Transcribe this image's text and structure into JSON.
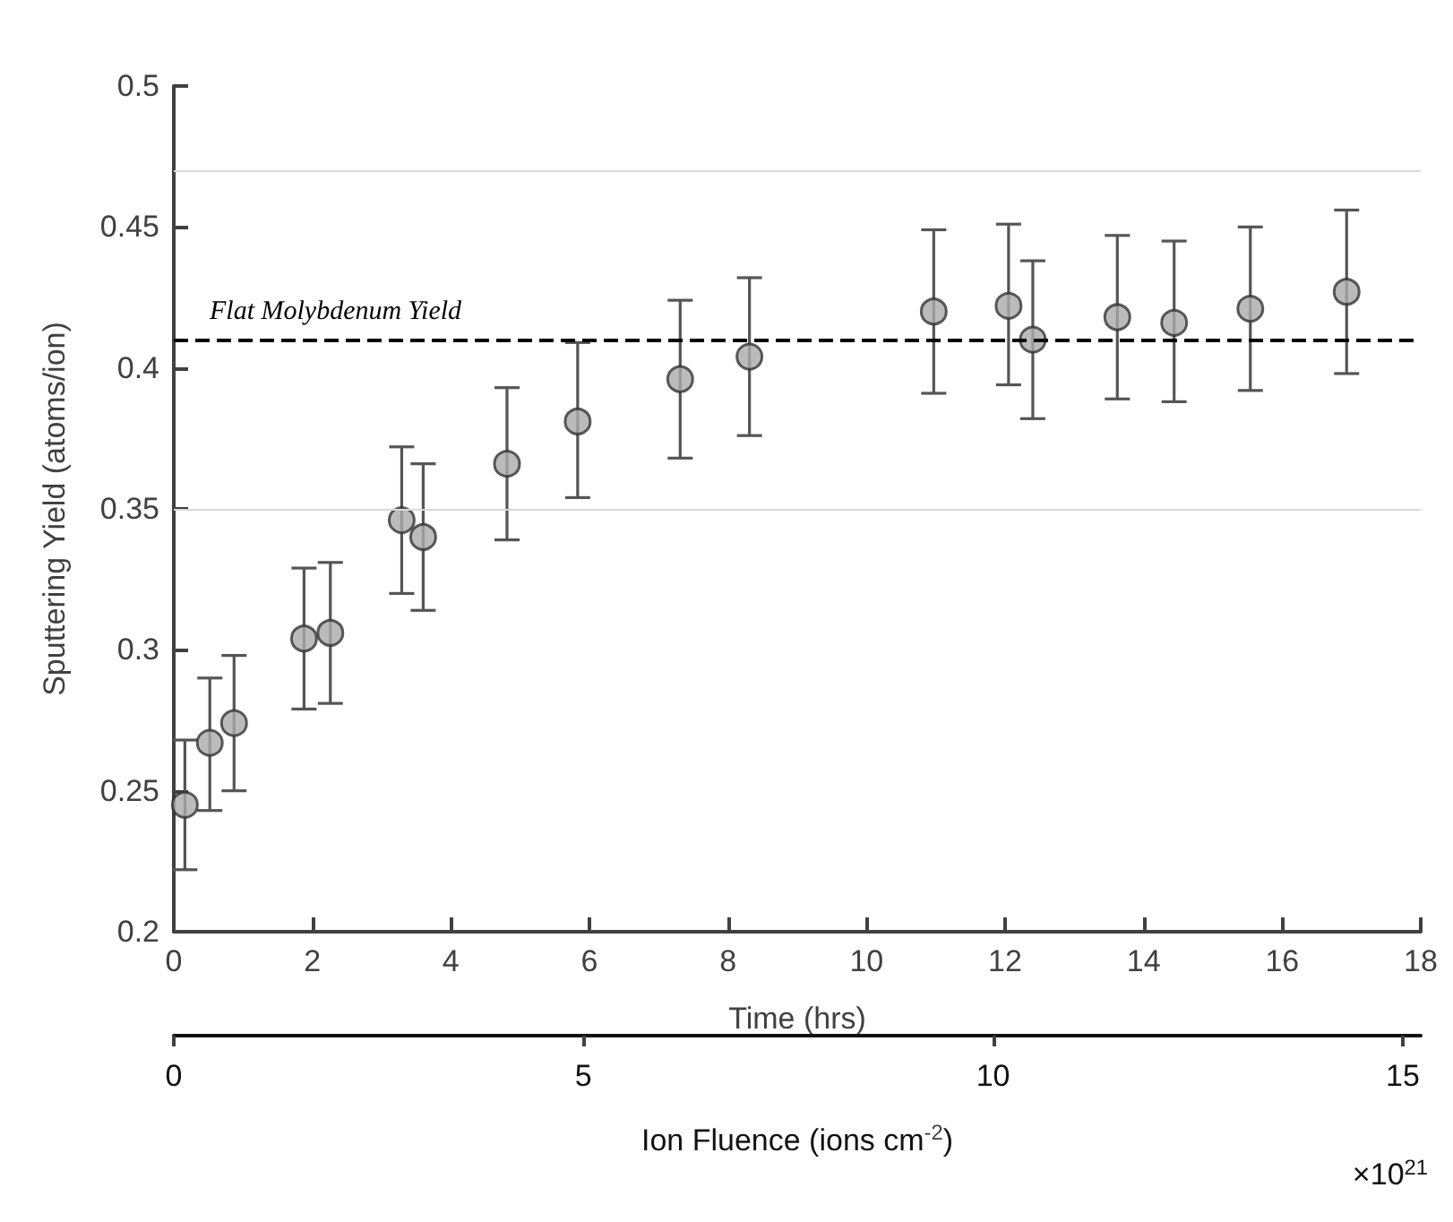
{
  "chart_data": {
    "type": "scatter",
    "xlabel": "Time (hrs)",
    "ylabel": "Sputtering Yield (atoms/ion)",
    "x2label": "Ion Fluence (ions cm$^{-2}$)",
    "annotations": [
      "×10$^{21}$"
    ],
    "x": [
      0.16,
      0.52,
      0.87,
      1.88,
      2.26,
      3.29,
      3.6,
      4.81,
      5.83,
      7.31,
      8.31,
      10.97,
      12.05,
      12.4,
      13.62,
      14.44,
      15.54,
      16.93
    ],
    "series": [
      {
        "color": "#aaaaaa",
        "values": [
          0.245,
          0.267,
          0.274,
          0.304,
          0.306,
          0.346,
          0.34,
          0.366,
          0.381,
          0.396,
          0.404,
          0.42,
          0.422,
          0.41,
          0.418,
          0.416,
          0.421,
          0.427
        ],
        "errors": [
          [
            0.222,
            0.268
          ],
          [
            0.243,
            0.29
          ],
          [
            0.25,
            0.298
          ],
          [
            0.279,
            0.329
          ],
          [
            0.281,
            0.331
          ],
          [
            0.32,
            0.372
          ],
          [
            0.314,
            0.366
          ],
          [
            0.339,
            0.393
          ],
          [
            0.354,
            0.409
          ],
          [
            0.368,
            0.424
          ],
          [
            0.376,
            0.432
          ],
          [
            0.391,
            0.449
          ],
          [
            0.394,
            0.451
          ],
          [
            0.382,
            0.438
          ],
          [
            0.389,
            0.447
          ],
          [
            0.388,
            0.445
          ],
          [
            0.392,
            0.45
          ],
          [
            0.398,
            0.456
          ]
        ]
      }
    ],
    "xlim": [
      0,
      18
    ],
    "xticks": [
      0,
      2,
      4,
      6,
      8,
      10,
      12,
      14,
      16,
      18
    ],
    "x2lim": [
      0,
      15.22
    ],
    "x2ticks": [
      0,
      5,
      10,
      15
    ],
    "ylim": [
      0.2,
      0.5
    ],
    "yticks": [
      0.2,
      0.25,
      0.3,
      0.35,
      0.4,
      0.45,
      0.5
    ],
    "ref_lines": [
      {
        "axis": "y",
        "value": 0.41,
        "label": "Flat Molybdenum Yield",
        "color": "#000000",
        "line_style": "dashed"
      },
      {
        "axis": "y",
        "value": 0.35,
        "color": "#d9d9d9",
        "line_style": "solid"
      },
      {
        "axis": "y",
        "value": 0.47,
        "color": "#d9d9d9",
        "line_style": "solid"
      }
    ],
    "marker": "circle",
    "grid": false
  }
}
